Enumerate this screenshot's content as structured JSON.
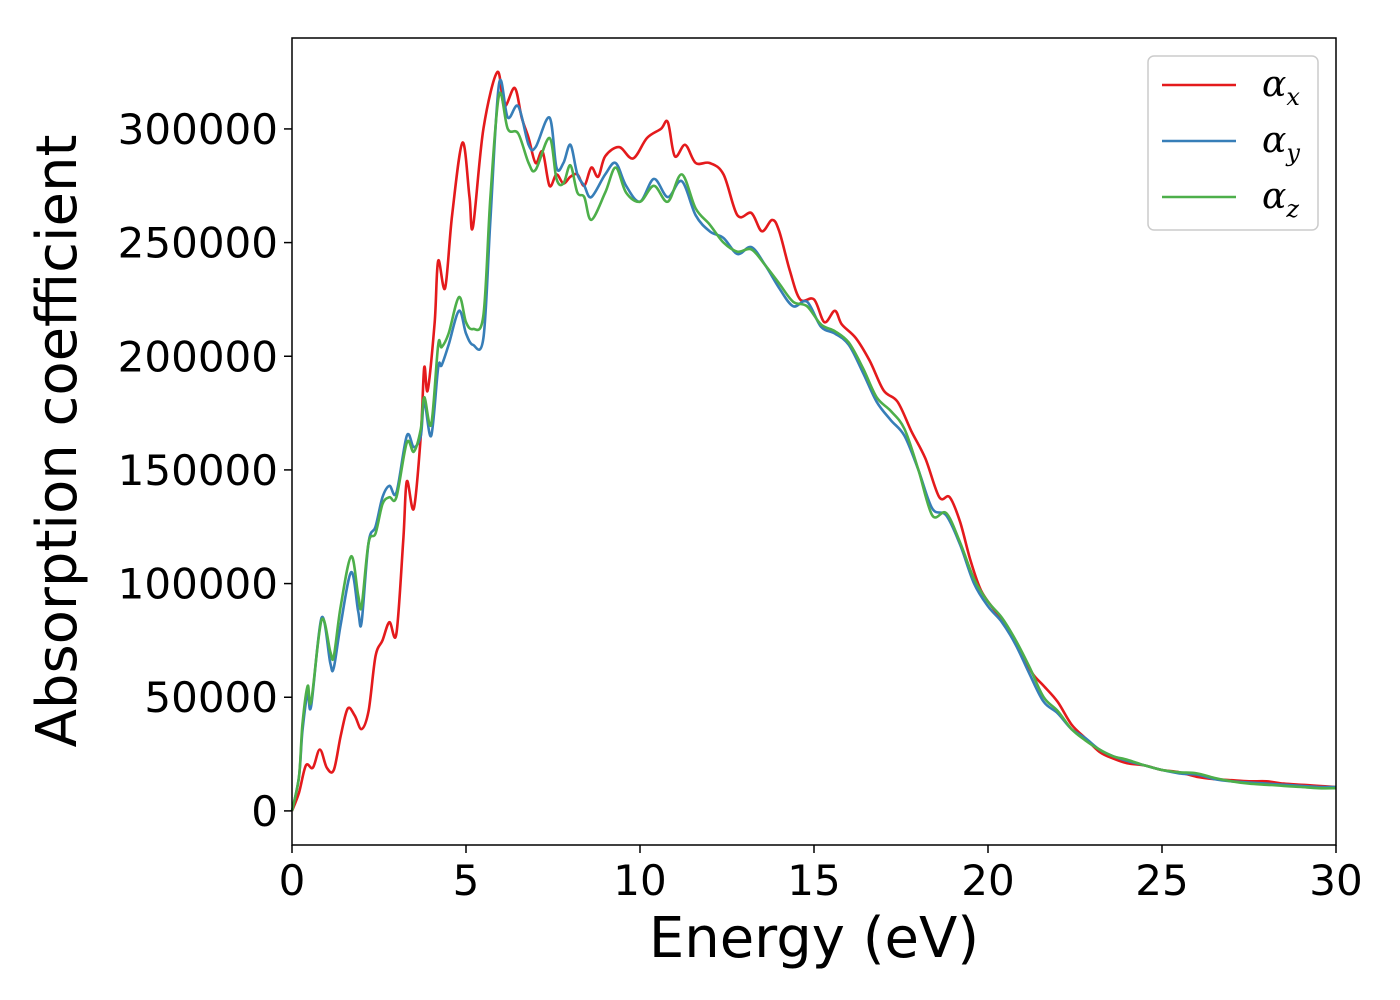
{
  "chart_data": {
    "type": "line",
    "title": "",
    "xlabel": "Energy (eV)",
    "ylabel": "Absorption coefficient",
    "xlim": [
      0,
      30
    ],
    "ylim": [
      -15000,
      340000
    ],
    "xticks": [
      "0",
      "5",
      "10",
      "15",
      "20",
      "25",
      "30"
    ],
    "yticks": [
      "0",
      "50000",
      "100000",
      "150000",
      "200000",
      "250000",
      "300000"
    ],
    "grid": false,
    "legend_position": "top-right",
    "series": [
      {
        "name": "α_x",
        "legend_symbol": "α",
        "legend_subscript": "x",
        "color": "#e41a1c",
        "points": [
          [
            0,
            0
          ],
          [
            0.2,
            8000
          ],
          [
            0.4,
            20000
          ],
          [
            0.6,
            19000
          ],
          [
            0.8,
            27000
          ],
          [
            1.0,
            19000
          ],
          [
            1.2,
            18000
          ],
          [
            1.4,
            33000
          ],
          [
            1.6,
            45000
          ],
          [
            1.8,
            42000
          ],
          [
            2.0,
            36000
          ],
          [
            2.2,
            44000
          ],
          [
            2.4,
            68000
          ],
          [
            2.6,
            75000
          ],
          [
            2.8,
            83000
          ],
          [
            3.0,
            78000
          ],
          [
            3.2,
            120000
          ],
          [
            3.3,
            145000
          ],
          [
            3.5,
            133000
          ],
          [
            3.7,
            165000
          ],
          [
            3.8,
            195000
          ],
          [
            3.9,
            185000
          ],
          [
            4.1,
            215000
          ],
          [
            4.2,
            242000
          ],
          [
            4.4,
            230000
          ],
          [
            4.6,
            262000
          ],
          [
            4.9,
            294000
          ],
          [
            5.1,
            270000
          ],
          [
            5.2,
            257000
          ],
          [
            5.5,
            300000
          ],
          [
            5.9,
            325000
          ],
          [
            6.1,
            310000
          ],
          [
            6.4,
            318000
          ],
          [
            6.6,
            305000
          ],
          [
            6.8,
            296000
          ],
          [
            7.0,
            285000
          ],
          [
            7.2,
            290000
          ],
          [
            7.4,
            275000
          ],
          [
            7.6,
            280000
          ],
          [
            7.8,
            276000
          ],
          [
            8.0,
            279000
          ],
          [
            8.2,
            280000
          ],
          [
            8.4,
            275000
          ],
          [
            8.6,
            283000
          ],
          [
            8.8,
            279000
          ],
          [
            9.0,
            288000
          ],
          [
            9.4,
            292000
          ],
          [
            9.8,
            287000
          ],
          [
            10.2,
            296000
          ],
          [
            10.6,
            300000
          ],
          [
            10.8,
            303000
          ],
          [
            11.0,
            288000
          ],
          [
            11.3,
            293000
          ],
          [
            11.6,
            285000
          ],
          [
            12.0,
            285000
          ],
          [
            12.4,
            280000
          ],
          [
            12.8,
            262000
          ],
          [
            13.2,
            263000
          ],
          [
            13.5,
            255000
          ],
          [
            13.8,
            260000
          ],
          [
            14.0,
            255000
          ],
          [
            14.3,
            238000
          ],
          [
            14.6,
            225000
          ],
          [
            15.0,
            225000
          ],
          [
            15.3,
            215000
          ],
          [
            15.6,
            220000
          ],
          [
            15.8,
            214000
          ],
          [
            16.2,
            208000
          ],
          [
            16.6,
            198000
          ],
          [
            17.0,
            185000
          ],
          [
            17.4,
            180000
          ],
          [
            17.8,
            167000
          ],
          [
            18.2,
            155000
          ],
          [
            18.6,
            138000
          ],
          [
            18.9,
            138000
          ],
          [
            19.2,
            127000
          ],
          [
            19.5,
            110000
          ],
          [
            19.8,
            97000
          ],
          [
            20.2,
            88000
          ],
          [
            20.6,
            80000
          ],
          [
            21.0,
            68000
          ],
          [
            21.3,
            60000
          ],
          [
            21.6,
            55000
          ],
          [
            22.0,
            48000
          ],
          [
            22.4,
            38000
          ],
          [
            22.8,
            32000
          ],
          [
            23.2,
            26000
          ],
          [
            23.6,
            23000
          ],
          [
            24.0,
            21000
          ],
          [
            24.5,
            20000
          ],
          [
            25.0,
            18000
          ],
          [
            25.5,
            17000
          ],
          [
            26.0,
            15000
          ],
          [
            26.5,
            14000
          ],
          [
            27.0,
            13500
          ],
          [
            27.5,
            13000
          ],
          [
            28.0,
            13000
          ],
          [
            28.5,
            12000
          ],
          [
            29.0,
            11500
          ],
          [
            29.5,
            11000
          ],
          [
            30,
            10500
          ]
        ]
      },
      {
        "name": "α_y",
        "legend_symbol": "α",
        "legend_subscript": "y",
        "color": "#377eb8",
        "points": [
          [
            0,
            0
          ],
          [
            0.2,
            15000
          ],
          [
            0.3,
            35000
          ],
          [
            0.45,
            52000
          ],
          [
            0.55,
            46000
          ],
          [
            0.85,
            85000
          ],
          [
            1.1,
            65000
          ],
          [
            1.2,
            63000
          ],
          [
            1.4,
            82000
          ],
          [
            1.7,
            105000
          ],
          [
            1.9,
            88000
          ],
          [
            2.0,
            83000
          ],
          [
            2.2,
            118000
          ],
          [
            2.4,
            125000
          ],
          [
            2.6,
            138000
          ],
          [
            2.8,
            143000
          ],
          [
            3.0,
            140000
          ],
          [
            3.3,
            165000
          ],
          [
            3.5,
            160000
          ],
          [
            3.7,
            165000
          ],
          [
            3.8,
            180000
          ],
          [
            4.0,
            165000
          ],
          [
            4.2,
            195000
          ],
          [
            4.3,
            196000
          ],
          [
            4.5,
            205000
          ],
          [
            4.8,
            220000
          ],
          [
            5.0,
            210000
          ],
          [
            5.2,
            205000
          ],
          [
            5.5,
            208000
          ],
          [
            5.7,
            260000
          ],
          [
            5.95,
            320000
          ],
          [
            6.2,
            305000
          ],
          [
            6.5,
            310000
          ],
          [
            6.8,
            293000
          ],
          [
            7.0,
            292000
          ],
          [
            7.4,
            305000
          ],
          [
            7.6,
            283000
          ],
          [
            7.8,
            285000
          ],
          [
            8.0,
            293000
          ],
          [
            8.2,
            280000
          ],
          [
            8.4,
            275000
          ],
          [
            8.6,
            270000
          ],
          [
            9.0,
            280000
          ],
          [
            9.3,
            285000
          ],
          [
            9.6,
            275000
          ],
          [
            10.0,
            268000
          ],
          [
            10.4,
            278000
          ],
          [
            10.8,
            270000
          ],
          [
            11.2,
            277000
          ],
          [
            11.6,
            262000
          ],
          [
            12.0,
            255000
          ],
          [
            12.4,
            252000
          ],
          [
            12.8,
            245000
          ],
          [
            13.2,
            248000
          ],
          [
            13.6,
            240000
          ],
          [
            14.0,
            230000
          ],
          [
            14.4,
            222000
          ],
          [
            14.8,
            224000
          ],
          [
            15.2,
            213000
          ],
          [
            15.6,
            210000
          ],
          [
            16.0,
            205000
          ],
          [
            16.4,
            193000
          ],
          [
            16.8,
            180000
          ],
          [
            17.2,
            172000
          ],
          [
            17.6,
            165000
          ],
          [
            18.0,
            150000
          ],
          [
            18.4,
            133000
          ],
          [
            18.8,
            130000
          ],
          [
            19.2,
            117000
          ],
          [
            19.6,
            100000
          ],
          [
            20.0,
            90000
          ],
          [
            20.4,
            83000
          ],
          [
            20.8,
            73000
          ],
          [
            21.2,
            60000
          ],
          [
            21.6,
            48000
          ],
          [
            22.0,
            43000
          ],
          [
            22.4,
            36000
          ],
          [
            22.8,
            32000
          ],
          [
            23.2,
            27000
          ],
          [
            23.6,
            24000
          ],
          [
            24.0,
            22000
          ],
          [
            24.5,
            20000
          ],
          [
            25.0,
            18000
          ],
          [
            25.5,
            16500
          ],
          [
            26.0,
            16000
          ],
          [
            26.5,
            14000
          ],
          [
            27.0,
            13000
          ],
          [
            27.5,
            12500
          ],
          [
            28.0,
            12000
          ],
          [
            28.5,
            11500
          ],
          [
            29.0,
            11000
          ],
          [
            29.5,
            10500
          ],
          [
            30,
            10500
          ]
        ]
      },
      {
        "name": "α_z",
        "legend_symbol": "α",
        "legend_subscript": "z",
        "color": "#4daf4a",
        "points": [
          [
            0,
            0
          ],
          [
            0.2,
            15000
          ],
          [
            0.3,
            38000
          ],
          [
            0.45,
            55000
          ],
          [
            0.55,
            48000
          ],
          [
            0.85,
            84000
          ],
          [
            1.1,
            70000
          ],
          [
            1.2,
            68000
          ],
          [
            1.4,
            90000
          ],
          [
            1.7,
            112000
          ],
          [
            1.9,
            95000
          ],
          [
            2.0,
            90000
          ],
          [
            2.2,
            118000
          ],
          [
            2.4,
            122000
          ],
          [
            2.6,
            135000
          ],
          [
            2.8,
            138000
          ],
          [
            3.0,
            138000
          ],
          [
            3.3,
            162000
          ],
          [
            3.5,
            158000
          ],
          [
            3.7,
            168000
          ],
          [
            3.8,
            182000
          ],
          [
            4.0,
            170000
          ],
          [
            4.2,
            205000
          ],
          [
            4.3,
            204000
          ],
          [
            4.5,
            210000
          ],
          [
            4.8,
            226000
          ],
          [
            5.0,
            215000
          ],
          [
            5.2,
            212000
          ],
          [
            5.5,
            218000
          ],
          [
            5.7,
            270000
          ],
          [
            5.95,
            315000
          ],
          [
            6.2,
            300000
          ],
          [
            6.5,
            298000
          ],
          [
            6.8,
            285000
          ],
          [
            7.0,
            282000
          ],
          [
            7.4,
            296000
          ],
          [
            7.6,
            278000
          ],
          [
            7.8,
            276000
          ],
          [
            8.0,
            284000
          ],
          [
            8.2,
            272000
          ],
          [
            8.4,
            270000
          ],
          [
            8.6,
            260000
          ],
          [
            9.0,
            272000
          ],
          [
            9.3,
            283000
          ],
          [
            9.6,
            272000
          ],
          [
            10.0,
            268000
          ],
          [
            10.4,
            275000
          ],
          [
            10.8,
            268000
          ],
          [
            11.2,
            280000
          ],
          [
            11.6,
            265000
          ],
          [
            12.0,
            258000
          ],
          [
            12.4,
            250000
          ],
          [
            12.8,
            246000
          ],
          [
            13.2,
            247000
          ],
          [
            13.6,
            240000
          ],
          [
            14.0,
            232000
          ],
          [
            14.4,
            224000
          ],
          [
            14.8,
            222000
          ],
          [
            15.2,
            214000
          ],
          [
            15.6,
            211000
          ],
          [
            16.0,
            206000
          ],
          [
            16.4,
            195000
          ],
          [
            16.8,
            182000
          ],
          [
            17.2,
            176000
          ],
          [
            17.6,
            168000
          ],
          [
            18.0,
            150000
          ],
          [
            18.4,
            130000
          ],
          [
            18.8,
            131000
          ],
          [
            19.2,
            118000
          ],
          [
            19.6,
            102000
          ],
          [
            20.0,
            92000
          ],
          [
            20.4,
            85000
          ],
          [
            20.8,
            75000
          ],
          [
            21.2,
            63000
          ],
          [
            21.6,
            50000
          ],
          [
            22.0,
            44000
          ],
          [
            22.4,
            36000
          ],
          [
            22.8,
            31000
          ],
          [
            23.2,
            27000
          ],
          [
            23.6,
            24000
          ],
          [
            24.0,
            22500
          ],
          [
            24.5,
            20000
          ],
          [
            25.0,
            18000
          ],
          [
            25.5,
            17000
          ],
          [
            26.0,
            16500
          ],
          [
            26.5,
            14500
          ],
          [
            27.0,
            13000
          ],
          [
            27.5,
            12000
          ],
          [
            28.0,
            11500
          ],
          [
            28.5,
            11000
          ],
          [
            29.0,
            10500
          ],
          [
            29.5,
            10000
          ],
          [
            30,
            10000
          ]
        ]
      }
    ]
  }
}
